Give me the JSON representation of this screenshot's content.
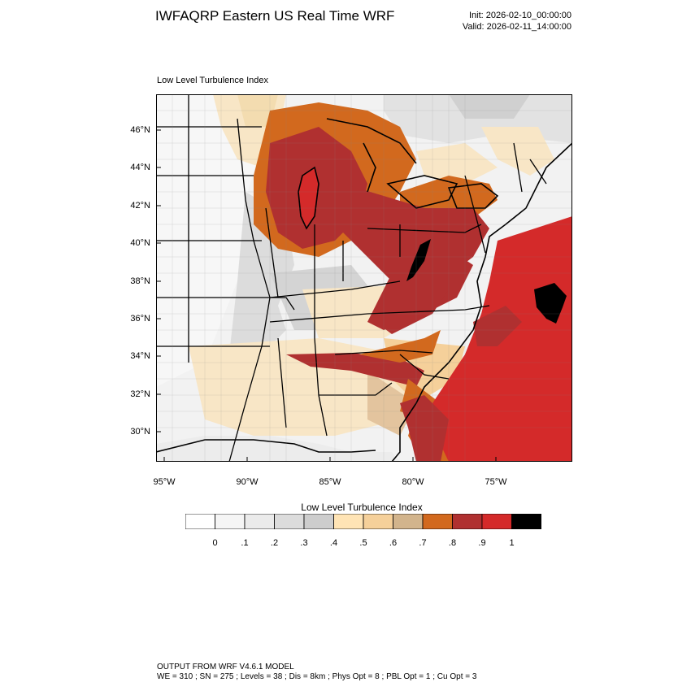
{
  "header": {
    "title": "IWFAQRP Eastern US Real Time WRF",
    "init": "Init: 2026-02-10_00:00:00",
    "valid": "Valid: 2026-02-11_14:00:00"
  },
  "map": {
    "field_title": "Low Level Turbulence Index",
    "lat_labels": [
      "46°N",
      "44°N",
      "42°N",
      "40°N",
      "38°N",
      "36°N",
      "34°N",
      "32°N",
      "30°N"
    ],
    "lon_labels": [
      "95°W",
      "90°W",
      "85°W",
      "80°W",
      "75°W"
    ]
  },
  "colorbar": {
    "title": "Low Level Turbulence Index",
    "colors": [
      "#ffffff",
      "#f5f5f5",
      "#ebebeb",
      "#dcdcdc",
      "#cdcdcd",
      "#ffe4b5",
      "#f5d09a",
      "#d2b48c",
      "#d2691e",
      "#b03030",
      "#d42a2a",
      "#000000"
    ],
    "labels": [
      "0",
      ".1",
      ".2",
      ".3",
      ".4",
      ".5",
      ".6",
      ".7",
      ".8",
      ".9",
      "1"
    ]
  },
  "footer": {
    "model": "OUTPUT FROM WRF V4.6.1 MODEL",
    "params": "WE = 310 ; SN = 275 ; Levels = 38 ; Dis = 8km ; Phys Opt = 8 ; PBL Opt = 1 ; Cu Opt = 3"
  }
}
